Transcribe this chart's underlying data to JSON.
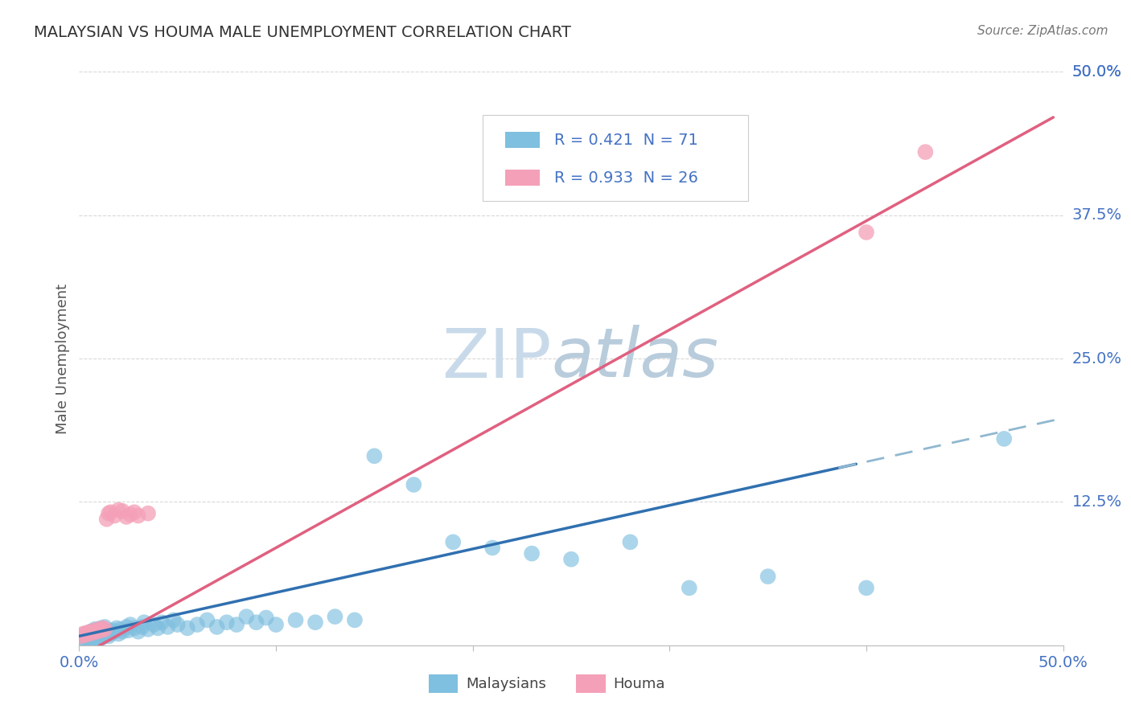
{
  "title": "MALAYSIAN VS HOUMA MALE UNEMPLOYMENT CORRELATION CHART",
  "source": "Source: ZipAtlas.com",
  "ylabel": "Male Unemployment",
  "xlim": [
    0.0,
    0.5
  ],
  "ylim": [
    0.0,
    0.5
  ],
  "xticks": [
    0.0,
    0.1,
    0.2,
    0.3,
    0.4,
    0.5
  ],
  "yticks": [
    0.0,
    0.125,
    0.25,
    0.375,
    0.5
  ],
  "right_ytick_labels": [
    "50.0%",
    "37.5%",
    "25.0%",
    "12.5%"
  ],
  "right_ytick_positions": [
    0.5,
    0.375,
    0.25,
    0.125
  ],
  "malaysian_R": 0.421,
  "malaysian_N": 71,
  "houma_R": 0.933,
  "houma_N": 26,
  "blue_scatter_color": "#7fbfdf",
  "pink_scatter_color": "#f4a0b8",
  "blue_line_color": "#3070b0",
  "pink_line_color": "#e06080",
  "blue_dash_color": "#90b8d0",
  "legend_R_color": "#4472c4",
  "legend_N_color": "#4472c4",
  "watermark_color": "#c8daea",
  "title_color": "#333333",
  "source_color": "#777777",
  "axis_label_color": "#555555",
  "tick_label_color": "#4472c4",
  "grid_color": "#d8d8d8",
  "malaysian_x": [
    0.001,
    0.002,
    0.003,
    0.003,
    0.004,
    0.005,
    0.005,
    0.006,
    0.006,
    0.007,
    0.007,
    0.008,
    0.008,
    0.009,
    0.009,
    0.01,
    0.01,
    0.011,
    0.011,
    0.012,
    0.012,
    0.013,
    0.013,
    0.014,
    0.015,
    0.016,
    0.017,
    0.018,
    0.019,
    0.02,
    0.021,
    0.022,
    0.024,
    0.025,
    0.026,
    0.028,
    0.03,
    0.032,
    0.033,
    0.035,
    0.038,
    0.04,
    0.042,
    0.045,
    0.048,
    0.05,
    0.055,
    0.06,
    0.065,
    0.07,
    0.075,
    0.08,
    0.085,
    0.09,
    0.095,
    0.1,
    0.11,
    0.12,
    0.13,
    0.14,
    0.15,
    0.17,
    0.19,
    0.21,
    0.23,
    0.25,
    0.28,
    0.31,
    0.35,
    0.4,
    0.47
  ],
  "malaysian_y": [
    0.005,
    0.008,
    0.004,
    0.01,
    0.006,
    0.003,
    0.009,
    0.007,
    0.012,
    0.005,
    0.011,
    0.008,
    0.014,
    0.006,
    0.013,
    0.005,
    0.01,
    0.008,
    0.015,
    0.007,
    0.012,
    0.009,
    0.016,
    0.011,
    0.008,
    0.01,
    0.013,
    0.012,
    0.015,
    0.01,
    0.014,
    0.012,
    0.016,
    0.013,
    0.018,
    0.015,
    0.012,
    0.016,
    0.02,
    0.014,
    0.018,
    0.015,
    0.02,
    0.016,
    0.022,
    0.018,
    0.015,
    0.018,
    0.022,
    0.016,
    0.02,
    0.018,
    0.025,
    0.02,
    0.024,
    0.018,
    0.022,
    0.02,
    0.025,
    0.022,
    0.165,
    0.14,
    0.09,
    0.085,
    0.08,
    0.075,
    0.09,
    0.05,
    0.06,
    0.05,
    0.18
  ],
  "houma_x": [
    0.001,
    0.002,
    0.003,
    0.004,
    0.005,
    0.006,
    0.007,
    0.008,
    0.009,
    0.01,
    0.011,
    0.012,
    0.013,
    0.014,
    0.015,
    0.016,
    0.018,
    0.02,
    0.022,
    0.024,
    0.026,
    0.028,
    0.03,
    0.035,
    0.4,
    0.43
  ],
  "houma_y": [
    0.008,
    0.01,
    0.009,
    0.011,
    0.01,
    0.012,
    0.011,
    0.013,
    0.012,
    0.014,
    0.013,
    0.015,
    0.014,
    0.11,
    0.115,
    0.116,
    0.113,
    0.118,
    0.117,
    0.112,
    0.114,
    0.116,
    0.113,
    0.115,
    0.36,
    0.43
  ]
}
